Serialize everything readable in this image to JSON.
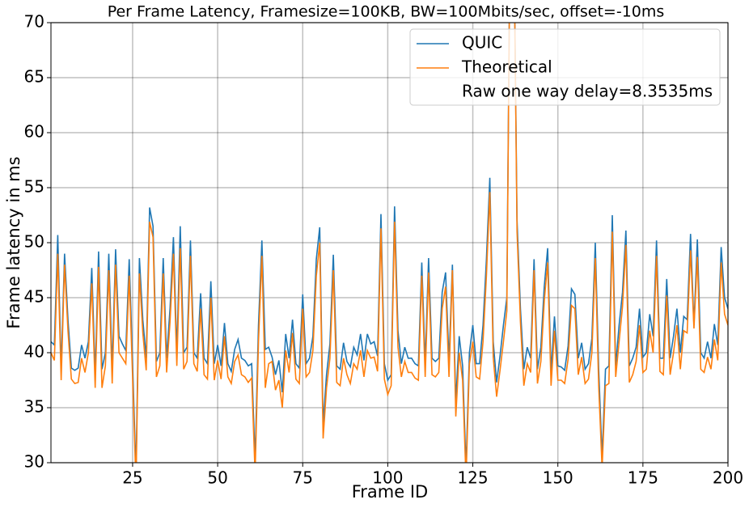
{
  "chart_data": {
    "type": "line",
    "title": "Per Frame Latency, Framesize=100KB, BW=100Mbits/sec, offset=-10ms",
    "xlabel": "Frame ID",
    "ylabel": "Frame latency in ms",
    "xlim": [
      1,
      200
    ],
    "xticks": [
      25,
      50,
      75,
      100,
      125,
      150,
      175,
      200
    ],
    "ylim": [
      30,
      70
    ],
    "yticks": [
      30,
      35,
      40,
      45,
      50,
      55,
      60,
      65,
      70
    ],
    "grid": true,
    "legend": "upper right",
    "annotations": [
      "Raw one way delay=8.3535ms"
    ],
    "x": [
      1,
      2,
      3,
      4,
      5,
      6,
      7,
      8,
      9,
      10,
      11,
      12,
      13,
      14,
      15,
      16,
      17,
      18,
      19,
      20,
      21,
      22,
      23,
      24,
      25,
      26,
      27,
      28,
      29,
      30,
      31,
      32,
      33,
      34,
      35,
      36,
      37,
      38,
      39,
      40,
      41,
      42,
      43,
      44,
      45,
      46,
      47,
      48,
      49,
      50,
      51,
      52,
      53,
      54,
      55,
      56,
      57,
      58,
      59,
      60,
      61,
      62,
      63,
      64,
      65,
      66,
      67,
      68,
      69,
      70,
      71,
      72,
      73,
      74,
      75,
      76,
      77,
      78,
      79,
      80,
      81,
      82,
      83,
      84,
      85,
      86,
      87,
      88,
      89,
      90,
      91,
      92,
      93,
      94,
      95,
      96,
      97,
      98,
      99,
      100,
      101,
      102,
      103,
      104,
      105,
      106,
      107,
      108,
      109,
      110,
      111,
      112,
      113,
      114,
      115,
      116,
      117,
      118,
      119,
      120,
      121,
      122,
      123,
      124,
      125,
      126,
      127,
      128,
      129,
      130,
      131,
      132,
      133,
      134,
      135,
      136,
      137,
      138,
      139,
      140,
      141,
      142,
      143,
      144,
      145,
      146,
      147,
      148,
      149,
      150,
      151,
      152,
      153,
      154,
      155,
      156,
      157,
      158,
      159,
      160,
      161,
      162,
      163,
      164,
      165,
      166,
      167,
      168,
      169,
      170,
      171,
      172,
      173,
      174,
      175,
      176,
      177,
      178,
      179,
      180,
      181,
      182,
      183,
      184,
      185,
      186,
      187,
      188,
      189,
      190,
      191,
      192,
      193,
      194,
      195,
      196,
      197,
      198,
      199,
      200
    ],
    "series": [
      {
        "name": "QUIC",
        "color": "#1f77b4",
        "values": [
          41,
          40.7,
          50.7,
          38.5,
          49,
          43,
          38.6,
          38.4,
          38.6,
          40.7,
          39.5,
          41,
          47.7,
          38,
          49.2,
          38.5,
          40,
          49,
          38.5,
          49.4,
          41.5,
          40.8,
          40.2,
          48.5,
          39,
          29,
          48.6,
          43,
          39.5,
          53.2,
          51.5,
          39.2,
          40,
          48.6,
          39.5,
          44,
          50.5,
          40,
          51.5,
          40,
          40.5,
          50.2,
          40,
          39.5,
          45.4,
          39.5,
          39,
          46.5,
          39,
          40.7,
          38.8,
          42.7,
          39,
          38.3,
          40.3,
          41.2,
          39.5,
          39.3,
          38.8,
          39,
          30.2,
          42.5,
          50.2,
          40.3,
          40.5,
          39.6,
          38,
          39.3,
          36.4,
          41.7,
          39.5,
          43,
          39,
          38.6,
          45.3,
          39,
          39.5,
          41.5,
          48.5,
          51.4,
          33.5,
          38,
          40.8,
          48.9,
          38.8,
          38.5,
          40.9,
          39.2,
          38.7,
          40.5,
          39.8,
          41.7,
          39.3,
          41.7,
          40.8,
          41,
          39.7,
          52.6,
          39,
          37.5,
          38,
          53.3,
          42,
          39,
          40.5,
          39.5,
          39.5,
          39,
          38.8,
          48.2,
          39,
          48.6,
          39.5,
          39.2,
          39.5,
          45.5,
          47.3,
          39.2,
          48,
          35.5,
          41.5,
          38.8,
          29.5,
          40,
          42.5,
          39,
          39,
          42.5,
          48.5,
          55.9,
          41,
          37.3,
          39.7,
          42.5,
          45,
          80,
          80,
          52,
          44,
          38.5,
          40.5,
          39.5,
          48.5,
          38.5,
          40.5,
          46,
          49.5,
          38.2,
          43.3,
          38.8,
          38.7,
          38.4,
          40.6,
          45.8,
          45.3,
          39.5,
          40.9,
          38.5,
          39,
          41.3,
          50,
          38.5,
          30.5,
          38.5,
          38.8,
          52.5,
          38.8,
          42.5,
          45.5,
          51.1,
          38.8,
          39.5,
          40.5,
          44,
          39.6,
          40,
          43.5,
          41.5,
          50.2,
          39.5,
          39.5,
          46.7,
          39.5,
          41.5,
          44,
          40,
          43.3,
          43,
          50.8,
          42.5,
          50.3,
          40,
          39.5,
          41,
          39.5,
          42.6,
          40.7,
          49.6,
          45,
          44
        ]
      },
      {
        "name": "Theoretical",
        "color": "#ff7f0e",
        "values": [
          40,
          39.3,
          49,
          37.5,
          48,
          42,
          37.6,
          37.2,
          37.3,
          39.5,
          38.2,
          40,
          46.3,
          36.8,
          47.8,
          36.8,
          38.8,
          47.5,
          37.2,
          48,
          40,
          39.5,
          39,
          47,
          37.8,
          28,
          47.2,
          41.8,
          38.4,
          51.9,
          50.5,
          37.8,
          38.8,
          47.2,
          38.2,
          42.8,
          49,
          38.8,
          49.5,
          38.5,
          39.2,
          48.8,
          39,
          38.3,
          44,
          38,
          37.6,
          45,
          37.5,
          39.3,
          37.6,
          41.5,
          37.8,
          37.2,
          39.2,
          39.8,
          38,
          37.8,
          37.3,
          37.7,
          29,
          41,
          48.8,
          36.8,
          39,
          39.2,
          36.6,
          37.5,
          35,
          40.2,
          38.2,
          41.8,
          37.6,
          37.2,
          44,
          37.8,
          38.2,
          40.2,
          47,
          50,
          32.2,
          36.8,
          39.5,
          47.5,
          37.3,
          37,
          39.5,
          38,
          37.2,
          39,
          38.5,
          40.2,
          37.8,
          40.2,
          39.5,
          39.6,
          38.3,
          51.3,
          37.6,
          36.2,
          37,
          51.9,
          40.5,
          37.8,
          39.2,
          38.2,
          38.2,
          37.7,
          37.5,
          47,
          37.8,
          47.3,
          38,
          37.8,
          38.2,
          44,
          46,
          37.8,
          47.5,
          34.2,
          40,
          37.5,
          28.5,
          39,
          41,
          37.8,
          37.6,
          41,
          47,
          54.6,
          39.6,
          36,
          38.4,
          41,
          43.8,
          80,
          80,
          51,
          42.8,
          37,
          39,
          38.2,
          47.5,
          37.2,
          39.2,
          44.7,
          48.2,
          37,
          42,
          37.5,
          37.5,
          37.2,
          39.4,
          44.3,
          44,
          38,
          39.6,
          37.2,
          37.6,
          40,
          48.6,
          37,
          29.5,
          37,
          37.2,
          51,
          37.8,
          41,
          44.2,
          49.8,
          37.3,
          38,
          39.2,
          42.5,
          38.2,
          38.5,
          42,
          40,
          48.8,
          38.3,
          38,
          45.2,
          38,
          40,
          42.5,
          38.5,
          42,
          41.8,
          49.3,
          42.2,
          48.7,
          38.5,
          38.2,
          39.6,
          38.5,
          41.2,
          39.3,
          48.2,
          43.5,
          42.5
        ]
      }
    ]
  }
}
